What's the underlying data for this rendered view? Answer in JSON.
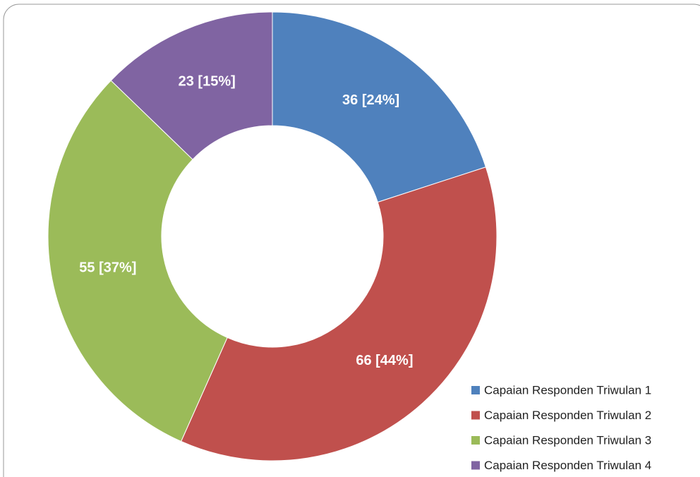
{
  "chart_data": {
    "type": "donut",
    "categories": [
      "Capaian Responden Triwulan 1",
      "Capaian Responden Triwulan 2",
      "Capaian Responden Triwulan 3",
      "Capaian Responden Triwulan 4"
    ],
    "values": [
      36,
      66,
      55,
      23
    ],
    "value_labels": [
      "36 [24%]",
      "66 [44%]",
      "55 [37%]",
      "23 [15%]"
    ],
    "colors": [
      "#4f81bd",
      "#c0504d",
      "#9bbb59",
      "#8064a2"
    ],
    "legend": "bottom-right"
  }
}
